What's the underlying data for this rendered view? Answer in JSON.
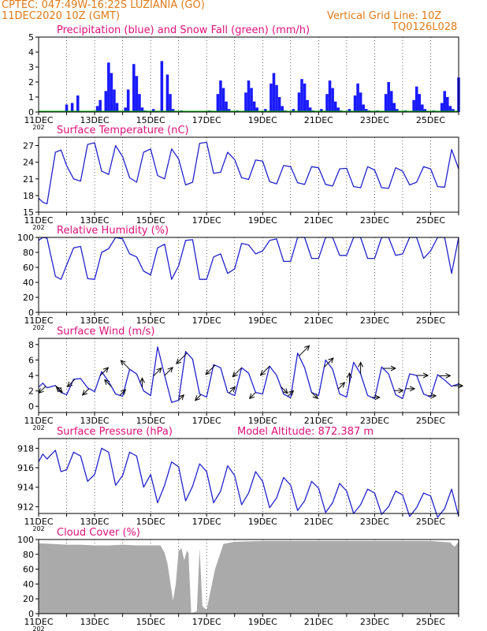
{
  "header": {
    "line1": "CPTEC:  047:49W-16:22S   LUZIANIA (GO)",
    "line2": "11DEC2020 10Z (GMT)",
    "grid_note": "Vertical Grid Line: 10Z",
    "code": "TQ0126L028"
  },
  "colors": {
    "header": "#e07a18",
    "title": "#e0107a",
    "line": "#2222cc",
    "precip": "#1a1aff",
    "snow": "#00aa00",
    "cloud": "#aaaaaa",
    "grid": "#000000"
  },
  "time_axis": {
    "start_day": 11,
    "end_day": 26,
    "tick_labels": [
      "11DEC",
      "13DEC",
      "15DEC",
      "17DEC",
      "19DEC",
      "21DEC",
      "23DEC",
      "25DEC"
    ],
    "year_stub": "202"
  },
  "chart_data": [
    {
      "type": "bar",
      "id": "precip",
      "title": "Precipitation (blue) and Snow Fall (green) (mm/h)",
      "ylim": [
        0,
        5
      ],
      "yticks": [
        0,
        1,
        2,
        3,
        4,
        5
      ],
      "series": [
        {
          "name": "Precipitation",
          "x": [
            12.0,
            12.2,
            12.4,
            13.1,
            13.2,
            13.4,
            13.5,
            13.6,
            13.7,
            13.8,
            14.1,
            14.2,
            14.4,
            14.5,
            14.6,
            14.7,
            14.8,
            15.1,
            15.4,
            15.6,
            15.7,
            15.8,
            16.1,
            17.1,
            17.4,
            17.5,
            17.6,
            17.7,
            17.8,
            18.1,
            18.4,
            18.5,
            18.6,
            18.7,
            18.8,
            19.1,
            19.3,
            19.4,
            19.5,
            19.6,
            19.7,
            19.8,
            20.1,
            20.3,
            20.4,
            20.5,
            20.6,
            20.7,
            20.8,
            21.1,
            21.3,
            21.4,
            21.5,
            21.6,
            21.7,
            21.8,
            22.1,
            22.3,
            22.4,
            22.5,
            22.6,
            22.7,
            22.8,
            23.1,
            23.4,
            23.5,
            23.6,
            23.7,
            23.8,
            24.1,
            24.4,
            24.5,
            24.6,
            24.7,
            24.8,
            25.1,
            25.4,
            25.5,
            25.6,
            25.7,
            25.8,
            26.0
          ],
          "values": [
            0.5,
            0.6,
            1.1,
            0.4,
            0.8,
            1.4,
            3.3,
            2.6,
            1.5,
            0.6,
            0.3,
            1.5,
            3.2,
            2.4,
            1.2,
            0.3,
            0.1,
            0.2,
            3.4,
            2.5,
            1.2,
            0.2,
            0.1,
            0.1,
            1.2,
            2.1,
            1.6,
            0.7,
            0.2,
            0.1,
            1.3,
            2.1,
            1.6,
            0.7,
            0.3,
            0.2,
            1.9,
            2.6,
            1.8,
            1.0,
            0.4,
            0.1,
            0.2,
            1.3,
            2.2,
            1.9,
            0.8,
            0.3,
            0.1,
            0.2,
            1.2,
            2.1,
            1.6,
            0.7,
            0.3,
            0.1,
            0.2,
            1.1,
            1.9,
            1.3,
            0.5,
            0.2,
            0.1,
            0.1,
            1.2,
            2.0,
            1.4,
            0.6,
            0.2,
            0.1,
            0.8,
            1.7,
            1.2,
            0.5,
            0.2,
            0.1,
            0.6,
            1.4,
            1.0,
            0.4,
            0.2,
            2.3
          ]
        },
        {
          "name": "Snow Fall",
          "x": [
            11.0,
            26.0
          ],
          "values": [
            0,
            0
          ]
        }
      ]
    },
    {
      "type": "line",
      "id": "temp",
      "title": "Surface Temperature (nC)",
      "ylim": [
        15,
        28.5
      ],
      "yticks": [
        15,
        18,
        21,
        24,
        27
      ],
      "series": [
        {
          "name": "Temperature",
          "x": [
            11.0,
            11.15,
            11.3,
            11.6,
            11.8,
            12.0,
            12.25,
            12.5,
            12.75,
            13.0,
            13.25,
            13.5,
            13.75,
            14.0,
            14.25,
            14.5,
            14.75,
            15.0,
            15.25,
            15.5,
            15.75,
            16.0,
            16.25,
            16.5,
            16.75,
            17.0,
            17.25,
            17.5,
            17.75,
            18.0,
            18.25,
            18.5,
            18.75,
            19.0,
            19.25,
            19.5,
            19.75,
            20.0,
            20.25,
            20.5,
            20.75,
            21.0,
            21.25,
            21.5,
            21.75,
            22.0,
            22.25,
            22.5,
            22.75,
            23.0,
            23.25,
            23.5,
            23.75,
            24.0,
            24.25,
            24.5,
            24.75,
            25.0,
            25.25,
            25.5,
            25.75,
            26.0
          ],
          "values": [
            17.5,
            16.8,
            16.5,
            25.8,
            26.2,
            23.4,
            21.0,
            20.6,
            27.2,
            27.5,
            22.4,
            21.8,
            27.0,
            25.0,
            21.2,
            20.4,
            25.8,
            26.4,
            21.6,
            21.0,
            26.4,
            24.6,
            19.9,
            20.4,
            27.4,
            27.6,
            22.0,
            22.2,
            25.8,
            24.5,
            21.2,
            20.9,
            24.4,
            24.2,
            20.5,
            20.1,
            23.4,
            23.2,
            20.3,
            20.0,
            23.2,
            23.0,
            20.0,
            19.7,
            22.8,
            22.9,
            19.6,
            19.4,
            23.2,
            22.6,
            19.4,
            19.3,
            23.0,
            22.4,
            19.9,
            20.4,
            23.2,
            22.8,
            19.6,
            19.5,
            26.3,
            22.8
          ]
        }
      ]
    },
    {
      "type": "line",
      "id": "rh",
      "title": "Relative Humidity (%)",
      "ylim": [
        0,
        100
      ],
      "yticks": [
        0,
        20,
        40,
        60,
        80,
        100
      ],
      "series": [
        {
          "name": "Relative Humidity",
          "x": [
            11.0,
            11.15,
            11.3,
            11.6,
            11.8,
            12.0,
            12.25,
            12.5,
            12.75,
            13.0,
            13.25,
            13.5,
            13.75,
            14.0,
            14.25,
            14.5,
            14.75,
            15.0,
            15.25,
            15.5,
            15.75,
            16.0,
            16.25,
            16.5,
            16.75,
            17.0,
            17.25,
            17.5,
            17.75,
            18.0,
            18.25,
            18.5,
            18.75,
            19.0,
            19.25,
            19.5,
            19.75,
            20.0,
            20.25,
            20.5,
            20.75,
            21.0,
            21.25,
            21.5,
            21.75,
            22.0,
            22.25,
            22.5,
            22.75,
            23.0,
            23.25,
            23.5,
            23.75,
            24.0,
            24.25,
            24.5,
            24.75,
            25.0,
            25.25,
            25.5,
            25.75,
            26.0
          ],
          "values": [
            96,
            100,
            99,
            48,
            44,
            63,
            86,
            88,
            45,
            44,
            80,
            85,
            100,
            98,
            78,
            74,
            55,
            50,
            86,
            91,
            44,
            62,
            96,
            97,
            44,
            44,
            74,
            78,
            52,
            58,
            92,
            90,
            78,
            82,
            96,
            98,
            68,
            68,
            100,
            100,
            72,
            72,
            100,
            100,
            76,
            76,
            100,
            100,
            72,
            72,
            100,
            100,
            76,
            78,
            100,
            100,
            72,
            82,
            100,
            100,
            52,
            100
          ]
        }
      ]
    },
    {
      "type": "line",
      "id": "wind",
      "title": "Surface Wind (m/s)",
      "ylim": [
        -0.8,
        8.8
      ],
      "yticks": [
        0,
        2,
        4,
        6,
        8
      ],
      "series": [
        {
          "name": "Wind Speed",
          "x": [
            11.0,
            11.15,
            11.3,
            11.6,
            11.8,
            12.0,
            12.25,
            12.5,
            12.75,
            13.0,
            13.25,
            13.5,
            13.75,
            14.0,
            14.25,
            14.5,
            14.75,
            15.0,
            15.25,
            15.5,
            15.75,
            16.0,
            16.25,
            16.5,
            16.75,
            17.0,
            17.25,
            17.5,
            17.75,
            18.0,
            18.25,
            18.5,
            18.75,
            19.0,
            19.25,
            19.5,
            19.75,
            20.0,
            20.25,
            20.5,
            20.75,
            21.0,
            21.25,
            21.5,
            21.75,
            22.0,
            22.25,
            22.5,
            22.75,
            23.0,
            23.25,
            23.5,
            23.75,
            24.0,
            24.25,
            24.5,
            24.75,
            25.0,
            25.25,
            25.5,
            25.75,
            26.0
          ],
          "values": [
            2.5,
            3.0,
            2.4,
            2.7,
            1.8,
            1.5,
            3.5,
            3.6,
            2.4,
            1.9,
            4.5,
            3.2,
            1.6,
            1.3,
            4.8,
            4.2,
            2.0,
            1.4,
            7.7,
            4.0,
            0.5,
            0.8,
            7.1,
            6.1,
            1.6,
            1.2,
            5.4,
            5.0,
            1.8,
            1.4,
            5.0,
            4.3,
            1.8,
            1.6,
            5.2,
            4.0,
            1.6,
            1.1,
            6.9,
            5.0,
            1.8,
            1.4,
            6.0,
            4.8,
            1.6,
            1.2,
            5.7,
            4.2,
            1.4,
            1.0,
            5.1,
            4.2,
            1.5,
            1.0,
            4.2,
            4.0,
            1.6,
            1.2,
            4.1,
            3.4,
            2.6,
            2.9
          ]
        }
      ]
    },
    {
      "type": "line",
      "id": "pres",
      "title": "Surface Pressure (hPa)",
      "annotation": "Model Altitude: 872.387 m",
      "ylim": [
        911.3,
        919.0
      ],
      "yticks": [
        912,
        914,
        916,
        918
      ],
      "series": [
        {
          "name": "Pressure",
          "x": [
            11.0,
            11.15,
            11.3,
            11.6,
            11.8,
            12.0,
            12.25,
            12.5,
            12.75,
            13.0,
            13.25,
            13.5,
            13.75,
            14.0,
            14.25,
            14.5,
            14.75,
            15.0,
            15.25,
            15.5,
            15.75,
            16.0,
            16.25,
            16.5,
            16.75,
            17.0,
            17.25,
            17.5,
            17.75,
            18.0,
            18.25,
            18.5,
            18.75,
            19.0,
            19.25,
            19.5,
            19.75,
            20.0,
            20.25,
            20.5,
            20.75,
            21.0,
            21.25,
            21.5,
            21.75,
            22.0,
            22.25,
            22.5,
            22.75,
            23.0,
            23.25,
            23.5,
            23.75,
            24.0,
            24.25,
            24.5,
            24.75,
            25.0,
            25.25,
            25.5,
            25.75,
            26.0
          ],
          "values": [
            916.6,
            917.4,
            916.9,
            917.8,
            915.6,
            915.8,
            917.6,
            917.2,
            914.6,
            915.3,
            918.0,
            917.6,
            914.2,
            915.2,
            917.6,
            917.2,
            914.0,
            915.3,
            912.4,
            914.2,
            916.6,
            916.1,
            912.6,
            914.1,
            916.4,
            915.6,
            912.4,
            913.6,
            916.2,
            915.2,
            912.2,
            913.4,
            915.6,
            914.6,
            911.9,
            912.9,
            915.0,
            914.2,
            911.6,
            912.6,
            914.6,
            913.9,
            911.4,
            912.4,
            914.4,
            913.6,
            911.3,
            912.2,
            913.8,
            913.4,
            911.2,
            912.0,
            913.6,
            913.2,
            911.0,
            911.9,
            913.4,
            913.1,
            910.9,
            911.8,
            913.8,
            911.0
          ]
        }
      ]
    },
    {
      "type": "area",
      "id": "cloud",
      "title": "Cloud Cover (%)",
      "ylim": [
        0,
        100
      ],
      "yticks": [
        0,
        20,
        40,
        60,
        80,
        100
      ],
      "series": [
        {
          "name": "Cloud Cover",
          "x": [
            11.0,
            11.5,
            12.0,
            12.5,
            13.0,
            13.5,
            14.0,
            14.5,
            15.0,
            15.35,
            15.5,
            15.6,
            15.8,
            15.9,
            16.0,
            16.1,
            16.2,
            16.3,
            16.35,
            16.45,
            16.55,
            16.65,
            16.75,
            16.85,
            17.0,
            17.3,
            17.6,
            18.0,
            19.0,
            20.0,
            21.0,
            22.0,
            23.0,
            24.0,
            25.0,
            25.7,
            25.85,
            26.0
          ],
          "values": [
            95,
            94,
            93,
            93,
            92,
            92,
            93,
            92,
            92,
            92,
            82,
            68,
            18,
            40,
            85,
            88,
            72,
            85,
            82,
            1,
            2,
            3,
            88,
            10,
            5,
            60,
            94,
            97,
            98,
            98,
            98,
            98,
            98,
            98,
            98,
            96,
            90,
            97
          ]
        }
      ]
    }
  ],
  "wind_arrows": [
    [
      11.25,
      225
    ],
    [
      11.6,
      315
    ],
    [
      11.85,
      135
    ],
    [
      12.3,
      225
    ],
    [
      12.8,
      225
    ],
    [
      13.2,
      45
    ],
    [
      13.6,
      135
    ],
    [
      13.9,
      45
    ],
    [
      14.25,
      135
    ],
    [
      14.7,
      90
    ],
    [
      15.1,
      45
    ],
    [
      15.5,
      45
    ],
    [
      16.0,
      45
    ],
    [
      16.3,
      225
    ],
    [
      16.8,
      225
    ],
    [
      17.3,
      225
    ],
    [
      17.8,
      45
    ],
    [
      18.25,
      225
    ],
    [
      18.75,
      225
    ],
    [
      19.25,
      225
    ],
    [
      19.65,
      315
    ],
    [
      19.9,
      45
    ],
    [
      20.3,
      45
    ],
    [
      20.75,
      315
    ],
    [
      21.2,
      45
    ],
    [
      21.7,
      45
    ],
    [
      22.1,
      90
    ],
    [
      22.5,
      90
    ],
    [
      22.9,
      0
    ],
    [
      23.3,
      0
    ],
    [
      23.7,
      0
    ],
    [
      24.1,
      0
    ],
    [
      24.5,
      0
    ],
    [
      24.9,
      0
    ],
    [
      25.3,
      0
    ],
    [
      25.8,
      0
    ]
  ]
}
